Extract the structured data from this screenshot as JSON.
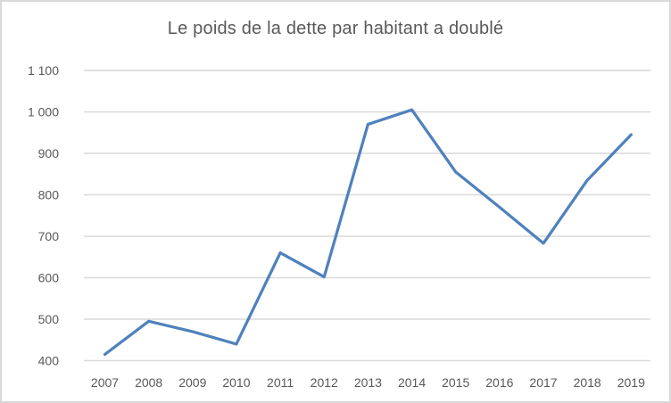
{
  "frame": {
    "background": "#ffffff",
    "border_color": "#d9d9d9"
  },
  "chart_data": {
    "type": "line",
    "title": "Le poids de la dette par habitant a doublé",
    "categories": [
      "2007",
      "2008",
      "2009",
      "2010",
      "2011",
      "2012",
      "2013",
      "2014",
      "2015",
      "2016",
      "2017",
      "2018",
      "2019"
    ],
    "values": [
      415,
      495,
      470,
      440,
      660,
      602,
      970,
      1005,
      855,
      770,
      683,
      835,
      945
    ],
    "xlabel": "",
    "ylabel": "",
    "ylim": [
      400,
      1100
    ],
    "ytick_step": 100,
    "ytick_labels": [
      "400",
      "500",
      "600",
      "700",
      "800",
      "900",
      "1 000",
      "1 100"
    ],
    "grid": "horizontal",
    "legend_position": "none",
    "markers": "none",
    "colors": {
      "line": "#4f81bd",
      "gridline": "#d9d9d9",
      "axis_text": "#595959",
      "title_text": "#595959"
    }
  }
}
